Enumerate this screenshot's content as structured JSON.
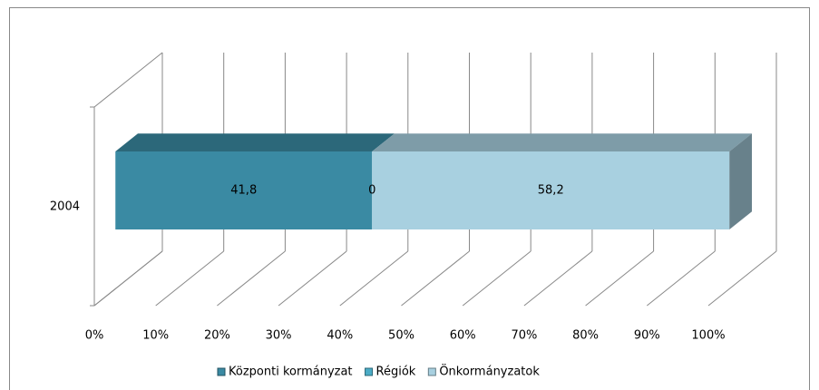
{
  "chart_data": {
    "type": "bar3d_stacked_100",
    "orientation": "horizontal",
    "categories": [
      "2004"
    ],
    "series": [
      {
        "name": "Központi kormányzat",
        "color": "#3a8aa3",
        "values": [
          41.8
        ],
        "value_labels": [
          "41,8"
        ]
      },
      {
        "name": "Régiók",
        "color": "#4bacc6",
        "values": [
          0
        ],
        "value_labels": [
          "0"
        ]
      },
      {
        "name": "Önkormányzatok",
        "color": "#a8d0e0",
        "values": [
          58.2
        ],
        "value_labels": [
          "58,2"
        ]
      }
    ],
    "xlim": [
      0,
      100
    ],
    "xticks": [
      {
        "value": 0,
        "label": "0%"
      },
      {
        "value": 10,
        "label": "10%"
      },
      {
        "value": 20,
        "label": "20%"
      },
      {
        "value": 30,
        "label": "30%"
      },
      {
        "value": 40,
        "label": "40%"
      },
      {
        "value": 50,
        "label": "50%"
      },
      {
        "value": 60,
        "label": "60%"
      },
      {
        "value": 70,
        "label": "70%"
      },
      {
        "value": 80,
        "label": "80%"
      },
      {
        "value": 90,
        "label": "90%"
      },
      {
        "value": 100,
        "label": "100%"
      }
    ],
    "grid": true,
    "legend": "bottom"
  }
}
